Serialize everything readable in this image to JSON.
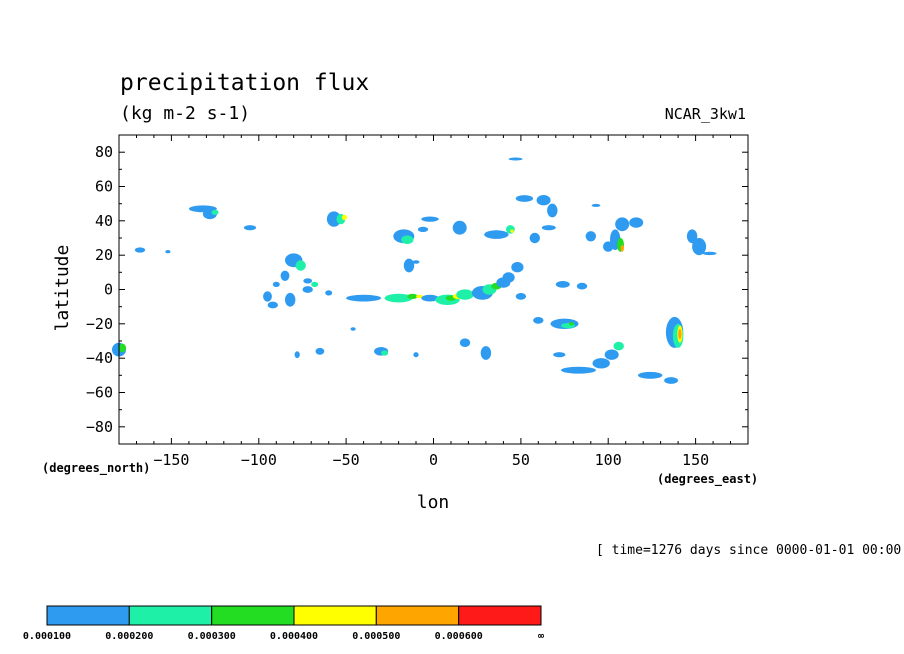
{
  "chart_data": {
    "type": "heatmap",
    "title": "precipitation flux",
    "units": "(kg m-2 s-1)",
    "model": "NCAR_3kw1",
    "xlabel": "lon",
    "ylabel": "latitude",
    "x_units": "(degrees_east)",
    "y_units": "(degrees_north)",
    "xlim": [
      -180,
      180
    ],
    "ylim": [
      -90,
      90
    ],
    "x_ticks": [
      -150,
      -100,
      -50,
      0,
      50,
      100,
      150
    ],
    "y_ticks": [
      80,
      60,
      40,
      20,
      0,
      -20,
      -40,
      -60,
      -80
    ],
    "time_label": "[ time=1276 days since 0000-01-01 00:00 ]",
    "levels": [
      "0.000100",
      "0.000200",
      "0.000300",
      "0.000400",
      "0.000500",
      "0.000600",
      "∞"
    ],
    "level_colors": [
      "#2f9bf0",
      "#1ff0a8",
      "#22dd22",
      "#ffff00",
      "#ffa500",
      "#ff1a1a"
    ],
    "grid": false,
    "cells": [
      [
        -180,
        -35,
        8,
        8,
        1
      ],
      [
        -178,
        -34,
        4,
        5,
        3
      ],
      [
        -168,
        23,
        6,
        3,
        1
      ],
      [
        -152,
        22,
        3,
        2,
        1
      ],
      [
        -132,
        47,
        16,
        4,
        1
      ],
      [
        -128,
        44,
        8,
        6,
        1
      ],
      [
        -125,
        45,
        4,
        3,
        2
      ],
      [
        -105,
        36,
        7,
        3,
        1
      ],
      [
        -80,
        17,
        10,
        8,
        1
      ],
      [
        -76,
        14,
        6,
        6,
        2
      ],
      [
        -85,
        8,
        5,
        6,
        1
      ],
      [
        -90,
        3,
        4,
        3,
        1
      ],
      [
        -95,
        -4,
        5,
        6,
        1
      ],
      [
        -92,
        -9,
        6,
        4,
        1
      ],
      [
        -82,
        -6,
        6,
        8,
        1
      ],
      [
        -72,
        0,
        6,
        4,
        1
      ],
      [
        -72,
        5,
        5,
        3,
        1
      ],
      [
        -68,
        3,
        4,
        3,
        2
      ],
      [
        -60,
        -2,
        4,
        3,
        1
      ],
      [
        -78,
        -38,
        3,
        4,
        1
      ],
      [
        -65,
        -36,
        5,
        4,
        1
      ],
      [
        -57,
        41,
        8,
        9,
        1
      ],
      [
        -53,
        41,
        5,
        6,
        2
      ],
      [
        -51,
        42,
        3,
        3,
        4
      ],
      [
        -46,
        -23,
        3,
        2,
        1
      ],
      [
        -30,
        -36,
        8,
        5,
        1
      ],
      [
        -28,
        -37,
        4,
        3,
        2
      ],
      [
        -10,
        -38,
        3,
        3,
        1
      ],
      [
        -17,
        31,
        12,
        8,
        1
      ],
      [
        -15,
        29,
        7,
        5,
        2
      ],
      [
        -6,
        35,
        6,
        3,
        1
      ],
      [
        -2,
        41,
        10,
        3,
        1
      ],
      [
        15,
        36,
        8,
        8,
        1
      ],
      [
        -10,
        16,
        4,
        2,
        1
      ],
      [
        -14,
        14,
        6,
        8,
        1
      ],
      [
        -40,
        -5,
        20,
        4,
        1
      ],
      [
        -20,
        -5,
        16,
        5,
        2
      ],
      [
        -12,
        -4,
        6,
        3,
        3
      ],
      [
        -8,
        -4,
        4,
        2,
        4
      ],
      [
        -2,
        -5,
        10,
        4,
        1
      ],
      [
        8,
        -6,
        14,
        6,
        2
      ],
      [
        10,
        -5,
        6,
        3,
        3
      ],
      [
        14,
        -4,
        6,
        3,
        4
      ],
      [
        18,
        -3,
        10,
        6,
        2
      ],
      [
        28,
        -2,
        12,
        8,
        1
      ],
      [
        32,
        0,
        8,
        6,
        2
      ],
      [
        36,
        2,
        6,
        4,
        3
      ],
      [
        40,
        4,
        8,
        6,
        1
      ],
      [
        18,
        -31,
        6,
        5,
        1
      ],
      [
        30,
        -37,
        6,
        8,
        1
      ],
      [
        36,
        32,
        14,
        5,
        1
      ],
      [
        44,
        35,
        5,
        5,
        2
      ],
      [
        45,
        34,
        2,
        2,
        4
      ],
      [
        50,
        -4,
        6,
        4,
        1
      ],
      [
        43,
        7,
        7,
        6,
        1
      ],
      [
        48,
        13,
        7,
        6,
        1
      ],
      [
        52,
        53,
        10,
        4,
        1
      ],
      [
        63,
        52,
        8,
        6,
        1
      ],
      [
        68,
        46,
        6,
        8,
        1
      ],
      [
        66,
        36,
        8,
        3,
        1
      ],
      [
        58,
        30,
        6,
        6,
        1
      ],
      [
        74,
        3,
        8,
        4,
        1
      ],
      [
        85,
        2,
        6,
        4,
        1
      ],
      [
        60,
        -18,
        6,
        4,
        1
      ],
      [
        75,
        -20,
        16,
        6,
        1
      ],
      [
        77,
        -21,
        8,
        3,
        2
      ],
      [
        79,
        -20,
        3,
        2,
        3
      ],
      [
        72,
        -38,
        7,
        3,
        1
      ],
      [
        83,
        -47,
        20,
        4,
        1
      ],
      [
        96,
        -43,
        10,
        6,
        1
      ],
      [
        102,
        -38,
        8,
        6,
        1
      ],
      [
        106,
        -33,
        6,
        5,
        2
      ],
      [
        90,
        31,
        6,
        6,
        1
      ],
      [
        100,
        25,
        6,
        6,
        1
      ],
      [
        104,
        29,
        6,
        12,
        1
      ],
      [
        107,
        26,
        4,
        8,
        3
      ],
      [
        108,
        24,
        2,
        4,
        5
      ],
      [
        108,
        38,
        8,
        8,
        1
      ],
      [
        116,
        39,
        8,
        6,
        1
      ],
      [
        138,
        -25,
        10,
        18,
        1
      ],
      [
        140,
        -27,
        6,
        14,
        2
      ],
      [
        141,
        -26,
        3,
        10,
        4
      ],
      [
        141,
        -26,
        2,
        6,
        5
      ],
      [
        124,
        -50,
        14,
        4,
        1
      ],
      [
        136,
        -53,
        8,
        4,
        1
      ],
      [
        152,
        25,
        8,
        10,
        1
      ],
      [
        148,
        31,
        6,
        8,
        1
      ],
      [
        158,
        21,
        8,
        2,
        1
      ],
      [
        47,
        76,
        8,
        1,
        1
      ],
      [
        93,
        49,
        5,
        1,
        1
      ]
    ]
  }
}
